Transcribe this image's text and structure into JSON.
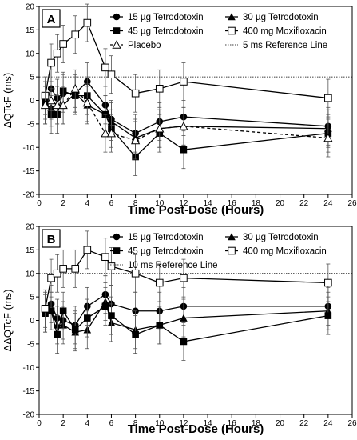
{
  "chart_data": [
    {
      "type": "line",
      "panel_label": "A",
      "xlabel": "Time Post-Dose (Hours)",
      "ylabel": "ΔQTcF (ms)",
      "xlim": [
        0,
        26
      ],
      "ylim": [
        -20,
        20
      ],
      "x_ticks": [
        0,
        2,
        4,
        6,
        8,
        10,
        12,
        14,
        16,
        18,
        20,
        22,
        24,
        26
      ],
      "y_ticks": [
        -20,
        -15,
        -10,
        -5,
        0,
        5,
        10,
        15,
        20
      ],
      "reference_line": {
        "name": "5 ms Reference Line",
        "value": 5
      },
      "legend_location": "top-right",
      "series": [
        {
          "name": "15 µg Tetrodotoxin",
          "marker": "circle",
          "dash": false,
          "x": [
            0.5,
            1,
            1.5,
            2,
            3,
            4,
            5.5,
            6,
            8,
            10,
            12,
            24
          ],
          "y": [
            -1,
            2.5,
            0.5,
            1.5,
            1.5,
            4,
            -1,
            -4,
            -7,
            -4.5,
            -3.5,
            -5.5
          ],
          "err": [
            4,
            4,
            4,
            4,
            4,
            4,
            4,
            4,
            4,
            4,
            4,
            4
          ]
        },
        {
          "name": "30 µg Tetrodotoxin",
          "marker": "triangle",
          "dash": false,
          "x": [
            0.5,
            1,
            1.5,
            2,
            3,
            4,
            5.5,
            6,
            8,
            10,
            12,
            24
          ],
          "y": [
            -1,
            -1.5,
            -1,
            -1,
            1.5,
            -1,
            -3,
            -4.5,
            -8,
            -6,
            -5.5,
            -6
          ],
          "err": [
            4,
            4,
            4,
            4,
            4,
            4,
            4,
            4,
            4,
            4,
            4,
            4
          ]
        },
        {
          "name": "45 µg Tetrodotoxin",
          "marker": "square",
          "dash": false,
          "x": [
            0.5,
            1,
            1.5,
            2,
            3,
            4,
            5.5,
            6,
            8,
            10,
            12,
            24
          ],
          "y": [
            0,
            -3,
            -3,
            2,
            1,
            1,
            -3,
            -6,
            -12,
            -7,
            -10.5,
            -7
          ],
          "err": [
            4,
            4,
            4,
            4,
            4,
            4,
            4,
            4,
            4,
            4,
            4,
            4
          ]
        },
        {
          "name": "400 mg Moxifloxacin",
          "marker": "open-square",
          "dash": false,
          "x": [
            0.5,
            1,
            1.5,
            2,
            3,
            4,
            5.5,
            6,
            8,
            10,
            12,
            24
          ],
          "y": [
            1,
            8,
            10,
            12,
            14,
            16.5,
            7,
            5.5,
            1.5,
            2.5,
            4,
            0.5
          ],
          "err": [
            4,
            4,
            4,
            4,
            4,
            4,
            4,
            4,
            4,
            4,
            4,
            4
          ]
        },
        {
          "name": "Placebo",
          "marker": "open-triangle",
          "dash": true,
          "x": [
            0.5,
            1,
            1.5,
            2,
            3,
            4,
            5.5,
            6,
            8,
            10,
            12,
            24
          ],
          "y": [
            -1,
            0,
            -1,
            -1,
            2.5,
            -0.5,
            -7,
            -7,
            -8.5,
            -6,
            -5.5,
            -8
          ],
          "err": [
            4,
            4,
            4,
            4,
            4,
            4,
            4,
            4,
            4,
            4,
            4,
            4
          ]
        }
      ]
    },
    {
      "type": "line",
      "panel_label": "B",
      "xlabel": "Time Post-Dose (Hours)",
      "ylabel": "ΔΔQTcF (ms)",
      "xlim": [
        0,
        26
      ],
      "ylim": [
        -20,
        20
      ],
      "x_ticks": [
        0,
        2,
        4,
        6,
        8,
        10,
        12,
        14,
        16,
        18,
        20,
        22,
        24,
        26
      ],
      "y_ticks": [
        -20,
        -15,
        -10,
        -5,
        0,
        5,
        10,
        15,
        20
      ],
      "reference_line": {
        "name": "10 ms Reference Line",
        "value": 10
      },
      "legend_location": "top-right",
      "series": [
        {
          "name": "15 µg Tetrodotoxin",
          "marker": "circle",
          "dash": false,
          "x": [
            0.5,
            1,
            1.5,
            2,
            3,
            4,
            5.5,
            6,
            8,
            10,
            12,
            24
          ],
          "y": [
            1.5,
            3.5,
            0.5,
            0,
            -1,
            3,
            5.5,
            3.5,
            2,
            2,
            3,
            3
          ],
          "err": [
            4,
            4,
            4,
            4,
            4,
            4,
            4,
            4,
            4,
            4,
            4,
            4
          ]
        },
        {
          "name": "30 µg Tetrodotoxin",
          "marker": "triangle",
          "dash": false,
          "x": [
            0.5,
            1,
            1.5,
            2,
            3,
            4,
            5.5,
            6,
            8,
            10,
            12,
            24
          ],
          "y": [
            2,
            2,
            -1,
            -1,
            -2.5,
            -2,
            4,
            -0.5,
            -2,
            -1,
            0.5,
            2
          ],
          "err": [
            4,
            4,
            4,
            4,
            4,
            4,
            4,
            4,
            4,
            4,
            4,
            4
          ]
        },
        {
          "name": "45 µg Tetrodotoxin",
          "marker": "square",
          "dash": false,
          "x": [
            0.5,
            1,
            1.5,
            2,
            3,
            4,
            5.5,
            6,
            8,
            10,
            12,
            24
          ],
          "y": [
            1.5,
            2,
            -3,
            2,
            -2,
            0.5,
            3,
            1,
            -3,
            -1,
            -4.5,
            1
          ],
          "err": [
            4,
            4,
            4,
            4,
            4,
            4,
            4,
            4,
            4,
            4,
            4,
            4
          ]
        },
        {
          "name": "400 mg Moxifloxacin",
          "marker": "open-square",
          "dash": false,
          "x": [
            0.5,
            1,
            1.5,
            2,
            3,
            4,
            5.5,
            6,
            8,
            10,
            12,
            24
          ],
          "y": [
            2.5,
            9,
            10,
            11,
            11,
            15,
            13.5,
            11.5,
            10,
            8,
            9,
            8
          ],
          "err": [
            4,
            4,
            4,
            4,
            4,
            4,
            4,
            4,
            4,
            4,
            4,
            4
          ]
        }
      ]
    }
  ]
}
